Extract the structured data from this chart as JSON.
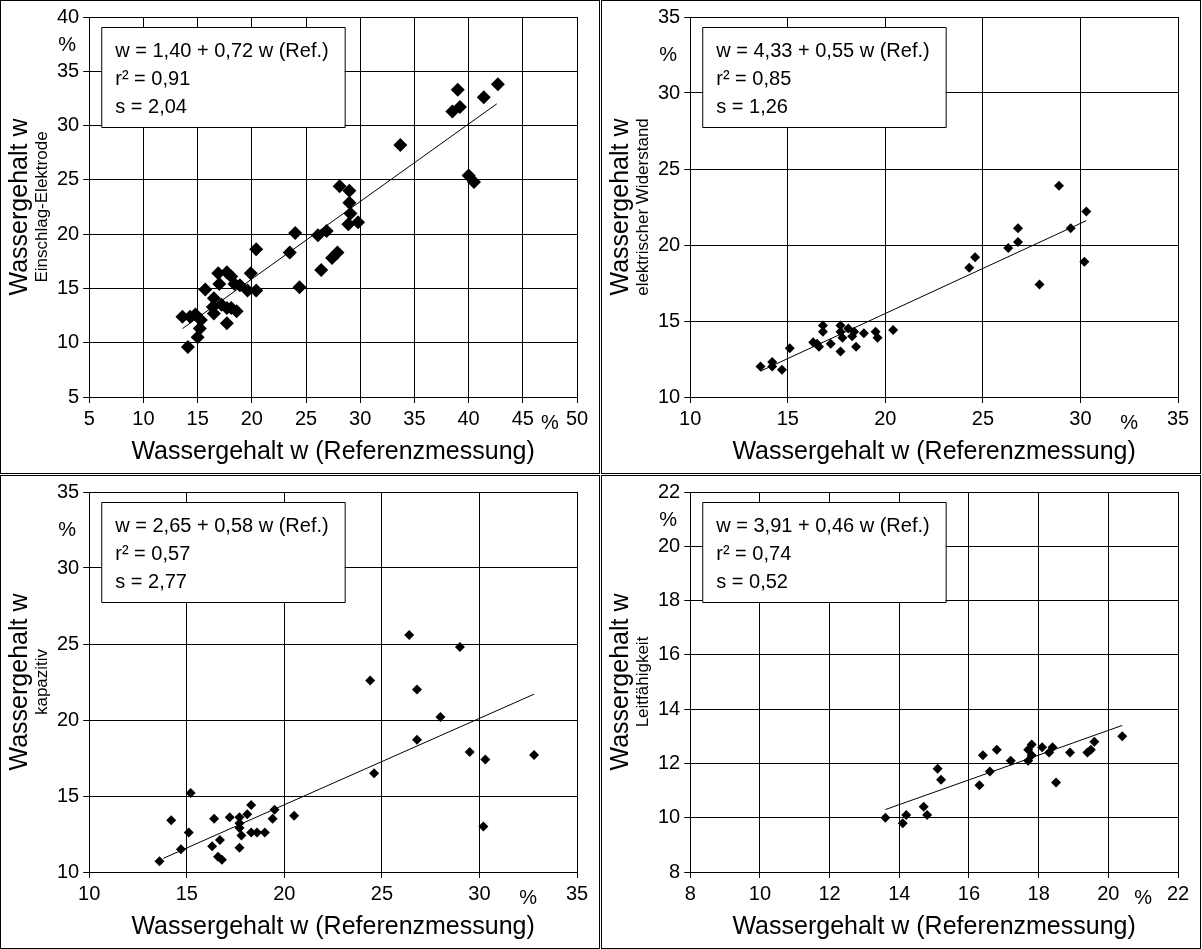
{
  "chart_data": [
    {
      "type": "scatter",
      "xlabel": "Wassergehalt w (Referenzmessung)",
      "ylabel": "Wassergehalt w\nEinschlag-Elektrode",
      "xlim": [
        5,
        50
      ],
      "xticks": [
        5,
        10,
        15,
        20,
        25,
        30,
        35,
        40,
        45,
        50
      ],
      "ylim": [
        5,
        40
      ],
      "yticks": [
        5,
        10,
        15,
        20,
        25,
        30,
        35,
        40
      ],
      "grid": true,
      "legend": false,
      "annotations": [
        "w = 1,40 + 0,72 w (Ref.)",
        "r² = 0,91",
        "s = 2,04",
        "%",
        "%"
      ],
      "series": [
        {
          "marker": "diamond",
          "color": "#000000",
          "x": [
            13.6,
            14.1,
            14.3,
            14.8,
            15.0,
            15.2,
            15.3,
            15.7,
            16.5,
            16.4,
            16.5,
            16.9,
            17.0,
            17.2,
            17.7,
            17.7,
            17.7,
            18.1,
            18.4,
            18.6,
            18.1,
            18.9,
            19.6,
            19.9,
            20.4,
            20.4,
            23.5,
            24.0,
            24.4,
            26.1,
            26.9,
            26.4,
            27.4,
            27.9,
            28.1,
            29.0,
            29.0,
            29.1,
            28.9,
            29.8,
            33.7,
            38.5,
            39.2,
            39.0,
            40.0,
            40.5,
            41.4,
            42.7
          ],
          "values": [
            12.4,
            9.6,
            12.4,
            12.6,
            10.5,
            11.3,
            12.1,
            14.9,
            14.1,
            13.3,
            12.7,
            16.4,
            15.4,
            13.5,
            11.8,
            13.2,
            16.5,
            16.1,
            15.4,
            12.9,
            13.2,
            15.3,
            14.8,
            16.4,
            18.6,
            14.8,
            18.3,
            20.1,
            15.1,
            19.9,
            20.3,
            16.7,
            17.8,
            18.3,
            24.4,
            24.0,
            22.9,
            21.9,
            20.9,
            21.1,
            28.2,
            31.3,
            31.7,
            33.3,
            25.4,
            24.8,
            32.6,
            33.8
          ]
        },
        {
          "type": "line",
          "marker": "none",
          "color": "#000000",
          "x": [
            13.6,
            42.6
          ],
          "values": [
            11.3,
            32.0
          ]
        }
      ]
    },
    {
      "type": "scatter",
      "xlabel": "Wassergehalt w (Referenzmessung)",
      "ylabel": "Wassergehalt w\nelektrischer Widerstand",
      "xlim": [
        10,
        35
      ],
      "xticks": [
        10,
        15,
        20,
        25,
        30,
        35
      ],
      "ylim": [
        10,
        35
      ],
      "yticks": [
        10,
        15,
        20,
        25,
        30,
        35
      ],
      "grid": true,
      "legend": false,
      "annotations": [
        "w = 4,33 + 0,55 w (Ref.)",
        "r² = 0,85",
        "s = 1,26",
        "%",
        "%"
      ],
      "series": [
        {
          "marker": "diamond",
          "color": "#000000",
          "x": [
            13.6,
            14.2,
            14.2,
            14.7,
            15.1,
            16.3,
            16.5,
            16.6,
            16.8,
            16.8,
            17.2,
            17.7,
            17.7,
            17.7,
            17.8,
            18.1,
            18.3,
            18.4,
            18.5,
            18.9,
            19.5,
            19.6,
            20.4,
            24.3,
            24.6,
            26.3,
            26.8,
            26.8,
            27.9,
            28.9,
            29.5,
            30.2,
            30.3
          ],
          "values": [
            12.0,
            12.3,
            12.0,
            11.8,
            13.2,
            13.6,
            13.5,
            13.3,
            14.7,
            14.3,
            13.5,
            14.7,
            14.3,
            13.0,
            13.9,
            14.5,
            14.0,
            14.3,
            13.3,
            14.2,
            14.3,
            13.9,
            14.4,
            18.5,
            19.2,
            19.8,
            20.2,
            21.1,
            17.4,
            23.9,
            21.1,
            18.9,
            22.2
          ]
        },
        {
          "type": "line",
          "marker": "none",
          "color": "#000000",
          "x": [
            13.6,
            30.3
          ],
          "values": [
            11.7,
            21.6
          ]
        }
      ]
    },
    {
      "type": "scatter",
      "xlabel": "Wassergehalt w (Referenzmessung)",
      "ylabel": "Wassergehalt w\nkapazitiv",
      "xlim": [
        10,
        35
      ],
      "xticks": [
        10,
        15,
        20,
        25,
        30,
        35
      ],
      "ylim": [
        10,
        35
      ],
      "yticks": [
        10,
        15,
        20,
        25,
        30,
        35
      ],
      "grid": true,
      "legend": false,
      "annotations": [
        "w = 2,65 + 0,58 w (Ref.)",
        "r² = 0,57",
        "s = 2,77",
        "%",
        "%"
      ],
      "series": [
        {
          "marker": "diamond",
          "color": "#000000",
          "x": [
            13.6,
            14.2,
            14.7,
            15.1,
            15.2,
            16.3,
            16.4,
            16.6,
            16.7,
            16.8,
            17.2,
            17.7,
            17.7,
            17.7,
            17.7,
            17.8,
            18.1,
            18.3,
            18.3,
            18.6,
            19.0,
            19.4,
            19.5,
            20.5,
            24.4,
            24.6,
            26.4,
            26.8,
            26.8,
            28.0,
            29.0,
            29.5,
            30.2,
            30.3,
            32.8
          ],
          "values": [
            10.7,
            13.4,
            11.5,
            12.6,
            15.2,
            11.7,
            13.5,
            11.0,
            12.1,
            10.8,
            13.6,
            12.9,
            13.2,
            13.6,
            11.6,
            12.4,
            13.8,
            14.4,
            12.6,
            12.6,
            12.6,
            13.5,
            14.1,
            13.7,
            22.6,
            16.5,
            25.6,
            18.7,
            22.0,
            20.2,
            24.8,
            17.9,
            13.0,
            17.4,
            17.7
          ]
        },
        {
          "type": "line",
          "marker": "none",
          "color": "#000000",
          "x": [
            13.8,
            32.8
          ],
          "values": [
            10.9,
            21.7
          ]
        }
      ]
    },
    {
      "type": "scatter",
      "xlabel": "Wassergehalt w (Referenzmessung)",
      "ylabel": "Wassergehalt w\nLeitfähigkeit",
      "xlim": [
        8,
        22
      ],
      "xticks": [
        8,
        10,
        12,
        14,
        16,
        18,
        20,
        22
      ],
      "ylim": [
        8,
        22
      ],
      "yticks": [
        8,
        10,
        12,
        14,
        16,
        18,
        20,
        22
      ],
      "grid": true,
      "legend": false,
      "annotations": [
        "w = 3,91 + 0,46 w (Ref.)",
        "r² = 0,74",
        "s = 0,52",
        "%",
        "%"
      ],
      "series": [
        {
          "marker": "diamond",
          "color": "#000000",
          "x": [
            13.6,
            14.1,
            14.2,
            14.7,
            14.8,
            15.1,
            15.2,
            16.3,
            16.4,
            16.6,
            16.8,
            17.2,
            17.7,
            17.7,
            17.8,
            17.8,
            18.1,
            18.3,
            18.4,
            18.5,
            18.9,
            19.4,
            19.5,
            19.6,
            20.4
          ],
          "values": [
            10.0,
            9.8,
            10.1,
            10.4,
            10.1,
            11.8,
            11.4,
            11.2,
            12.3,
            11.7,
            12.5,
            12.1,
            12.5,
            12.1,
            12.3,
            12.7,
            12.6,
            12.4,
            12.6,
            11.3,
            12.4,
            12.4,
            12.5,
            12.8,
            13.0
          ]
        },
        {
          "type": "line",
          "marker": "none",
          "color": "#000000",
          "x": [
            13.6,
            20.4
          ],
          "values": [
            10.3,
            13.4
          ]
        }
      ]
    }
  ]
}
